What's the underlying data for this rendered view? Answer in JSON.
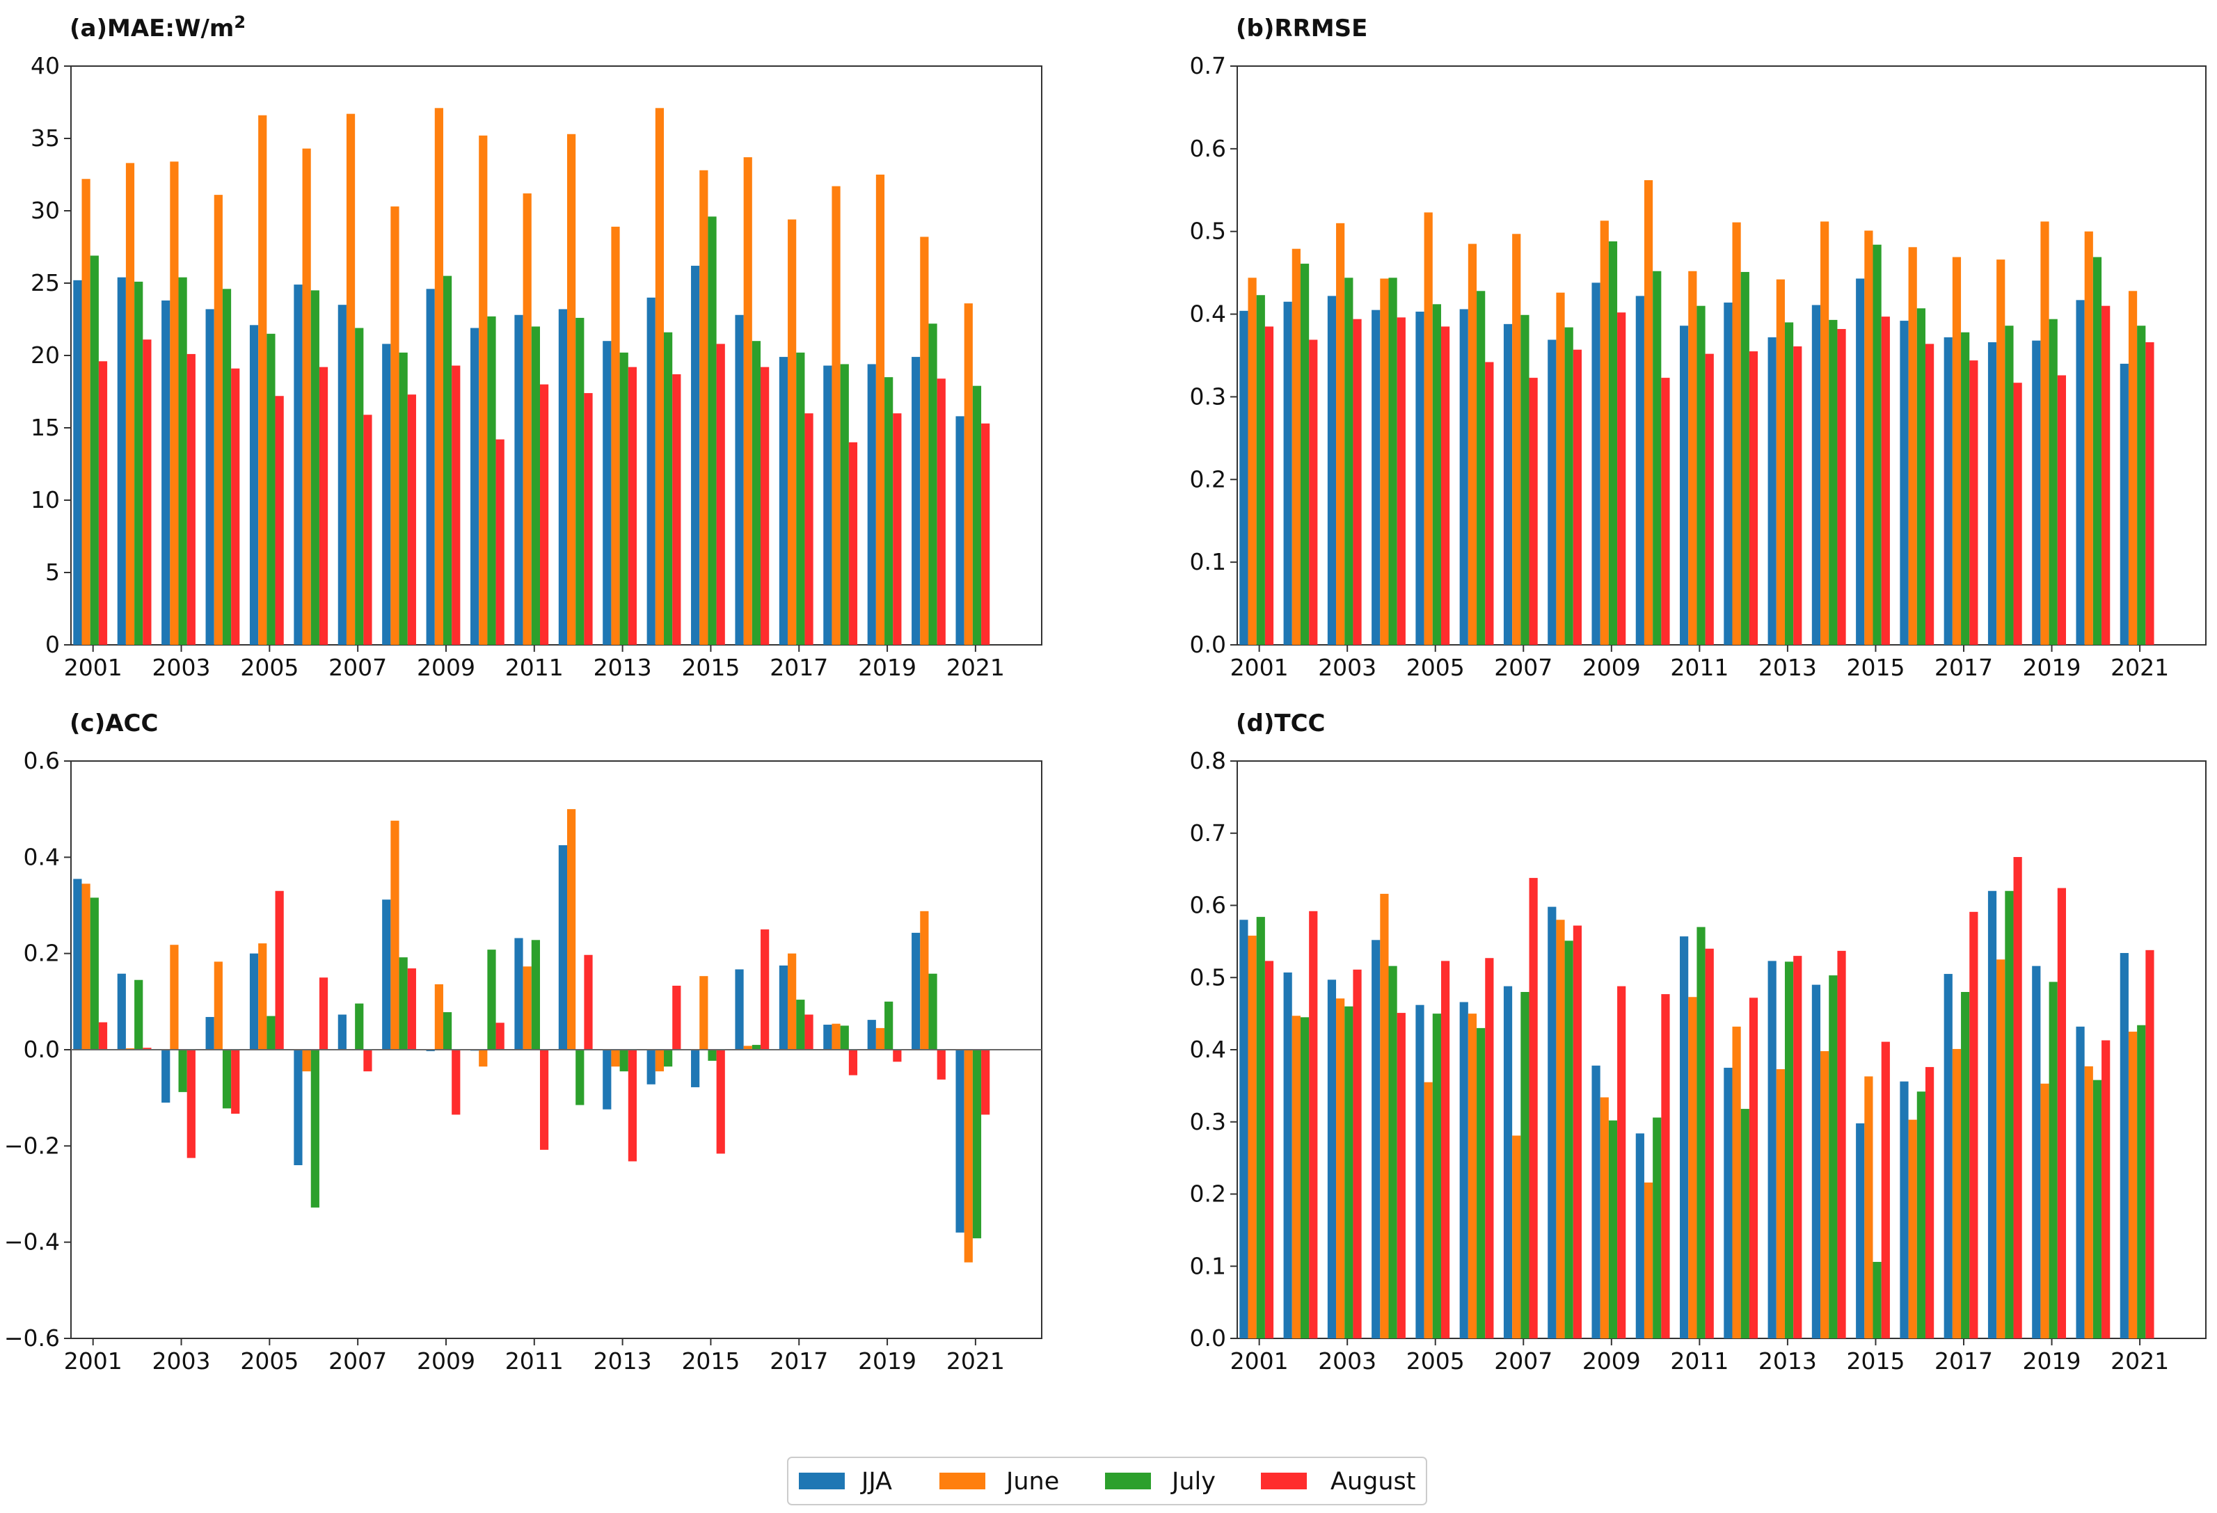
{
  "colors": {
    "JJA": "#1f77b4",
    "June": "#ff7f0e",
    "July": "#2ca02c",
    "August": "#ff2d2d"
  },
  "legend": [
    "JJA",
    "June",
    "July",
    "August"
  ],
  "chart_data": [
    {
      "type": "bar",
      "title": "(a)MAE:W/m",
      "title_sup": "2",
      "categories": [
        2001,
        2002,
        2003,
        2004,
        2005,
        2006,
        2007,
        2008,
        2009,
        2010,
        2011,
        2012,
        2013,
        2014,
        2015,
        2016,
        2017,
        2018,
        2019,
        2020,
        2021,
        2022
      ],
      "xtick_labels": [
        "2001",
        "2003",
        "2005",
        "2007",
        "2009",
        "2011",
        "2013",
        "2015",
        "2017",
        "2019",
        "2021"
      ],
      "ylim": [
        0,
        40
      ],
      "yticks": [
        0,
        5,
        10,
        15,
        20,
        25,
        30,
        35,
        40
      ],
      "ytick_labels": [
        "0",
        "5",
        "10",
        "15",
        "20",
        "25",
        "30",
        "35",
        "40"
      ],
      "zero_line": false,
      "series": [
        {
          "name": "JJA",
          "values": [
            25.2,
            25.4,
            23.8,
            23.2,
            22.1,
            24.9,
            23.5,
            20.8,
            24.6,
            21.9,
            22.8,
            23.2,
            21.0,
            24.0,
            26.2,
            22.8,
            19.9,
            19.3,
            19.4,
            19.9,
            15.8,
            0
          ]
        },
        {
          "name": "June",
          "values": [
            32.2,
            33.3,
            33.4,
            31.1,
            36.6,
            34.3,
            36.7,
            30.3,
            37.1,
            35.2,
            31.2,
            35.3,
            28.9,
            37.1,
            32.8,
            33.7,
            29.4,
            31.7,
            32.5,
            28.2,
            23.6,
            0
          ]
        },
        {
          "name": "July",
          "values": [
            26.9,
            25.1,
            25.4,
            24.6,
            21.5,
            24.5,
            21.9,
            20.2,
            25.5,
            22.7,
            22.0,
            22.6,
            20.2,
            21.6,
            29.6,
            21.0,
            20.2,
            19.4,
            18.5,
            22.2,
            17.9,
            0
          ]
        },
        {
          "name": "August",
          "values": [
            19.6,
            21.1,
            20.1,
            19.1,
            17.2,
            19.2,
            15.9,
            17.3,
            19.3,
            14.2,
            18.0,
            17.4,
            19.2,
            18.7,
            20.8,
            19.2,
            16.0,
            14.0,
            16.0,
            18.4,
            15.3,
            0
          ]
        }
      ]
    },
    {
      "type": "bar",
      "title": "(b)RRMSE",
      "title_sup": "",
      "categories": [
        2001,
        2002,
        2003,
        2004,
        2005,
        2006,
        2007,
        2008,
        2009,
        2010,
        2011,
        2012,
        2013,
        2014,
        2015,
        2016,
        2017,
        2018,
        2019,
        2020,
        2021,
        2022
      ],
      "xtick_labels": [
        "2001",
        "2003",
        "2005",
        "2007",
        "2009",
        "2011",
        "2013",
        "2015",
        "2017",
        "2019",
        "2021"
      ],
      "ylim": [
        0,
        0.7
      ],
      "yticks": [
        0,
        0.1,
        0.2,
        0.3,
        0.4,
        0.5,
        0.6,
        0.7
      ],
      "ytick_labels": [
        "0.0",
        "0.1",
        "0.2",
        "0.3",
        "0.4",
        "0.5",
        "0.6",
        "0.7"
      ],
      "zero_line": false,
      "series": [
        {
          "name": "JJA",
          "values": [
            0.404,
            0.415,
            0.422,
            0.405,
            0.403,
            0.406,
            0.388,
            0.369,
            0.438,
            0.422,
            0.386,
            0.414,
            0.372,
            0.411,
            0.443,
            0.392,
            0.372,
            0.366,
            0.368,
            0.417,
            0.34,
            0
          ]
        },
        {
          "name": "June",
          "values": [
            0.444,
            0.479,
            0.51,
            0.443,
            0.523,
            0.485,
            0.497,
            0.426,
            0.513,
            0.562,
            0.452,
            0.511,
            0.442,
            0.512,
            0.501,
            0.481,
            0.469,
            0.466,
            0.512,
            0.5,
            0.428,
            0
          ]
        },
        {
          "name": "July",
          "values": [
            0.423,
            0.461,
            0.444,
            0.444,
            0.412,
            0.428,
            0.399,
            0.384,
            0.488,
            0.452,
            0.41,
            0.451,
            0.39,
            0.393,
            0.484,
            0.407,
            0.378,
            0.386,
            0.394,
            0.469,
            0.386,
            0
          ]
        },
        {
          "name": "August",
          "values": [
            0.385,
            0.369,
            0.394,
            0.396,
            0.385,
            0.342,
            0.323,
            0.357,
            0.402,
            0.323,
            0.352,
            0.355,
            0.361,
            0.382,
            0.397,
            0.364,
            0.344,
            0.317,
            0.326,
            0.41,
            0.366,
            0
          ]
        }
      ]
    },
    {
      "type": "bar",
      "title": "(c)ACC",
      "title_sup": "",
      "categories": [
        2001,
        2002,
        2003,
        2004,
        2005,
        2006,
        2007,
        2008,
        2009,
        2010,
        2011,
        2012,
        2013,
        2014,
        2015,
        2016,
        2017,
        2018,
        2019,
        2020,
        2021,
        2022
      ],
      "xtick_labels": [
        "2001",
        "2003",
        "2005",
        "2007",
        "2009",
        "2011",
        "2013",
        "2015",
        "2017",
        "2019",
        "2021"
      ],
      "ylim": [
        -0.6,
        0.6
      ],
      "yticks": [
        -0.6,
        -0.4,
        -0.2,
        0,
        0.2,
        0.4,
        0.6
      ],
      "ytick_labels": [
        "−0.6",
        "−0.4",
        "−0.2",
        "0.0",
        "0.2",
        "0.4",
        "0.6"
      ],
      "zero_line": true,
      "series": [
        {
          "name": "JJA",
          "values": [
            0.355,
            0.158,
            -0.11,
            0.068,
            0.2,
            -0.24,
            0.073,
            0.312,
            -0.003,
            -0.002,
            0.232,
            0.425,
            -0.124,
            -0.072,
            -0.078,
            0.167,
            0.175,
            0.052,
            0.062,
            0.243,
            -0.38,
            0
          ]
        },
        {
          "name": "June",
          "values": [
            0.345,
            0.003,
            0.218,
            0.183,
            0.221,
            -0.045,
            0.0,
            0.476,
            0.136,
            -0.035,
            0.173,
            0.5,
            -0.035,
            -0.045,
            0.153,
            0.008,
            0.2,
            0.054,
            0.045,
            0.288,
            -0.442,
            0
          ]
        },
        {
          "name": "July",
          "values": [
            0.316,
            0.145,
            -0.088,
            -0.122,
            0.07,
            -0.328,
            0.096,
            0.192,
            0.078,
            0.208,
            0.228,
            -0.115,
            -0.045,
            -0.035,
            -0.023,
            0.01,
            0.104,
            0.05,
            0.1,
            0.158,
            -0.392,
            0
          ]
        },
        {
          "name": "August",
          "values": [
            0.057,
            0.004,
            -0.225,
            -0.133,
            0.33,
            0.15,
            -0.045,
            0.169,
            -0.135,
            0.056,
            -0.208,
            0.197,
            -0.232,
            0.133,
            -0.216,
            0.25,
            0.073,
            -0.053,
            -0.025,
            -0.062,
            -0.135,
            0
          ]
        }
      ]
    },
    {
      "type": "bar",
      "title": "(d)TCC",
      "title_sup": "",
      "categories": [
        2001,
        2002,
        2003,
        2004,
        2005,
        2006,
        2007,
        2008,
        2009,
        2010,
        2011,
        2012,
        2013,
        2014,
        2015,
        2016,
        2017,
        2018,
        2019,
        2020,
        2021,
        2022
      ],
      "xtick_labels": [
        "2001",
        "2003",
        "2005",
        "2007",
        "2009",
        "2011",
        "2013",
        "2015",
        "2017",
        "2019",
        "2021"
      ],
      "ylim": [
        0,
        0.8
      ],
      "yticks": [
        0,
        0.1,
        0.2,
        0.3,
        0.4,
        0.5,
        0.6,
        0.7,
        0.8
      ],
      "ytick_labels": [
        "0.0",
        "0.1",
        "0.2",
        "0.3",
        "0.4",
        "0.5",
        "0.6",
        "0.7",
        "0.8"
      ],
      "zero_line": false,
      "series": [
        {
          "name": "JJA",
          "values": [
            0.58,
            0.507,
            0.497,
            0.552,
            0.462,
            0.466,
            0.488,
            0.598,
            0.378,
            0.284,
            0.557,
            0.375,
            0.523,
            0.49,
            0.298,
            0.356,
            0.505,
            0.62,
            0.516,
            0.432,
            0.534,
            0
          ]
        },
        {
          "name": "June",
          "values": [
            0.558,
            0.447,
            0.471,
            0.616,
            0.355,
            0.45,
            0.281,
            0.58,
            0.334,
            0.216,
            0.473,
            0.432,
            0.373,
            0.398,
            0.363,
            0.303,
            0.401,
            0.525,
            0.353,
            0.377,
            0.425,
            0
          ]
        },
        {
          "name": "July",
          "values": [
            0.584,
            0.445,
            0.46,
            0.516,
            0.45,
            0.43,
            0.48,
            0.551,
            0.302,
            0.306,
            0.57,
            0.318,
            0.522,
            0.503,
            0.106,
            0.342,
            0.48,
            0.62,
            0.494,
            0.358,
            0.434,
            0
          ]
        },
        {
          "name": "August",
          "values": [
            0.523,
            0.592,
            0.511,
            0.451,
            0.523,
            0.527,
            0.638,
            0.572,
            0.488,
            0.477,
            0.54,
            0.472,
            0.53,
            0.537,
            0.411,
            0.376,
            0.591,
            0.667,
            0.624,
            0.413,
            0.538,
            0
          ]
        }
      ]
    }
  ]
}
